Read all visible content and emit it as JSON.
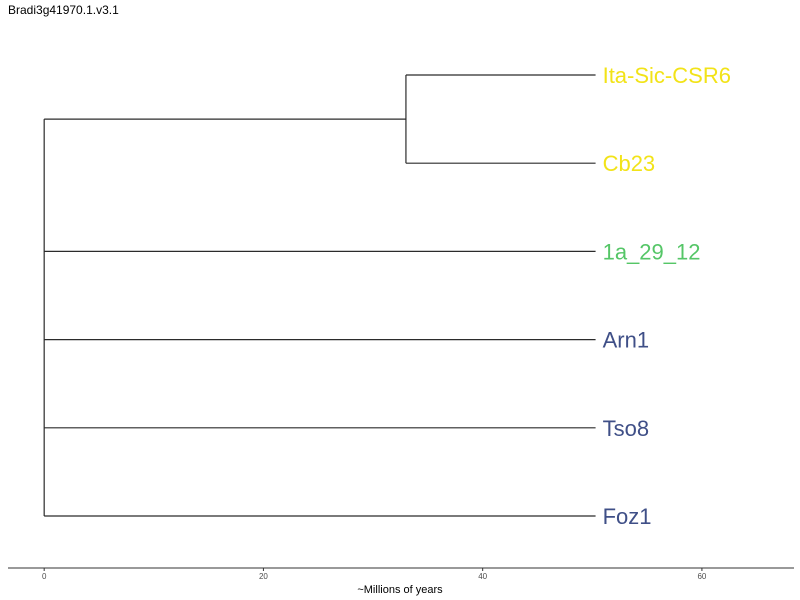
{
  "title": "Bradi3g41970.1.v3.1",
  "colors": {
    "branch": "#2b2b2b",
    "yellow": "#F2E318",
    "green": "#55C667",
    "blue": "#3F4F87"
  },
  "chart_data": {
    "type": "tree",
    "xlabel": "~Millions of years",
    "xlim": [
      -3.3,
      68.4
    ],
    "x_ticks": [
      "0",
      "20",
      "40",
      "60"
    ],
    "leaves": [
      {
        "name": "Ita-Sic-CSR6",
        "color": "#F2E318",
        "x": 50.3
      },
      {
        "name": "Cb23",
        "color": "#F2E318",
        "x": 50.3
      },
      {
        "name": "1a_29_12",
        "color": "#55C667",
        "x": 50.3
      },
      {
        "name": "Arn1",
        "color": "#3F4F87",
        "x": 50.3
      },
      {
        "name": "Tso8",
        "color": "#3F4F87",
        "x": 50.3
      },
      {
        "name": "Foz1",
        "color": "#3F4F87",
        "x": 50.3
      }
    ],
    "internal_nodes": [
      {
        "id": "yellow-clade",
        "x": 33.0,
        "children": [
          "Ita-Sic-CSR6",
          "Cb23"
        ]
      },
      {
        "id": "root",
        "x": 0.0,
        "children": [
          "yellow-clade",
          "1a_29_12",
          "Arn1",
          "Tso8",
          "Foz1"
        ]
      }
    ]
  }
}
